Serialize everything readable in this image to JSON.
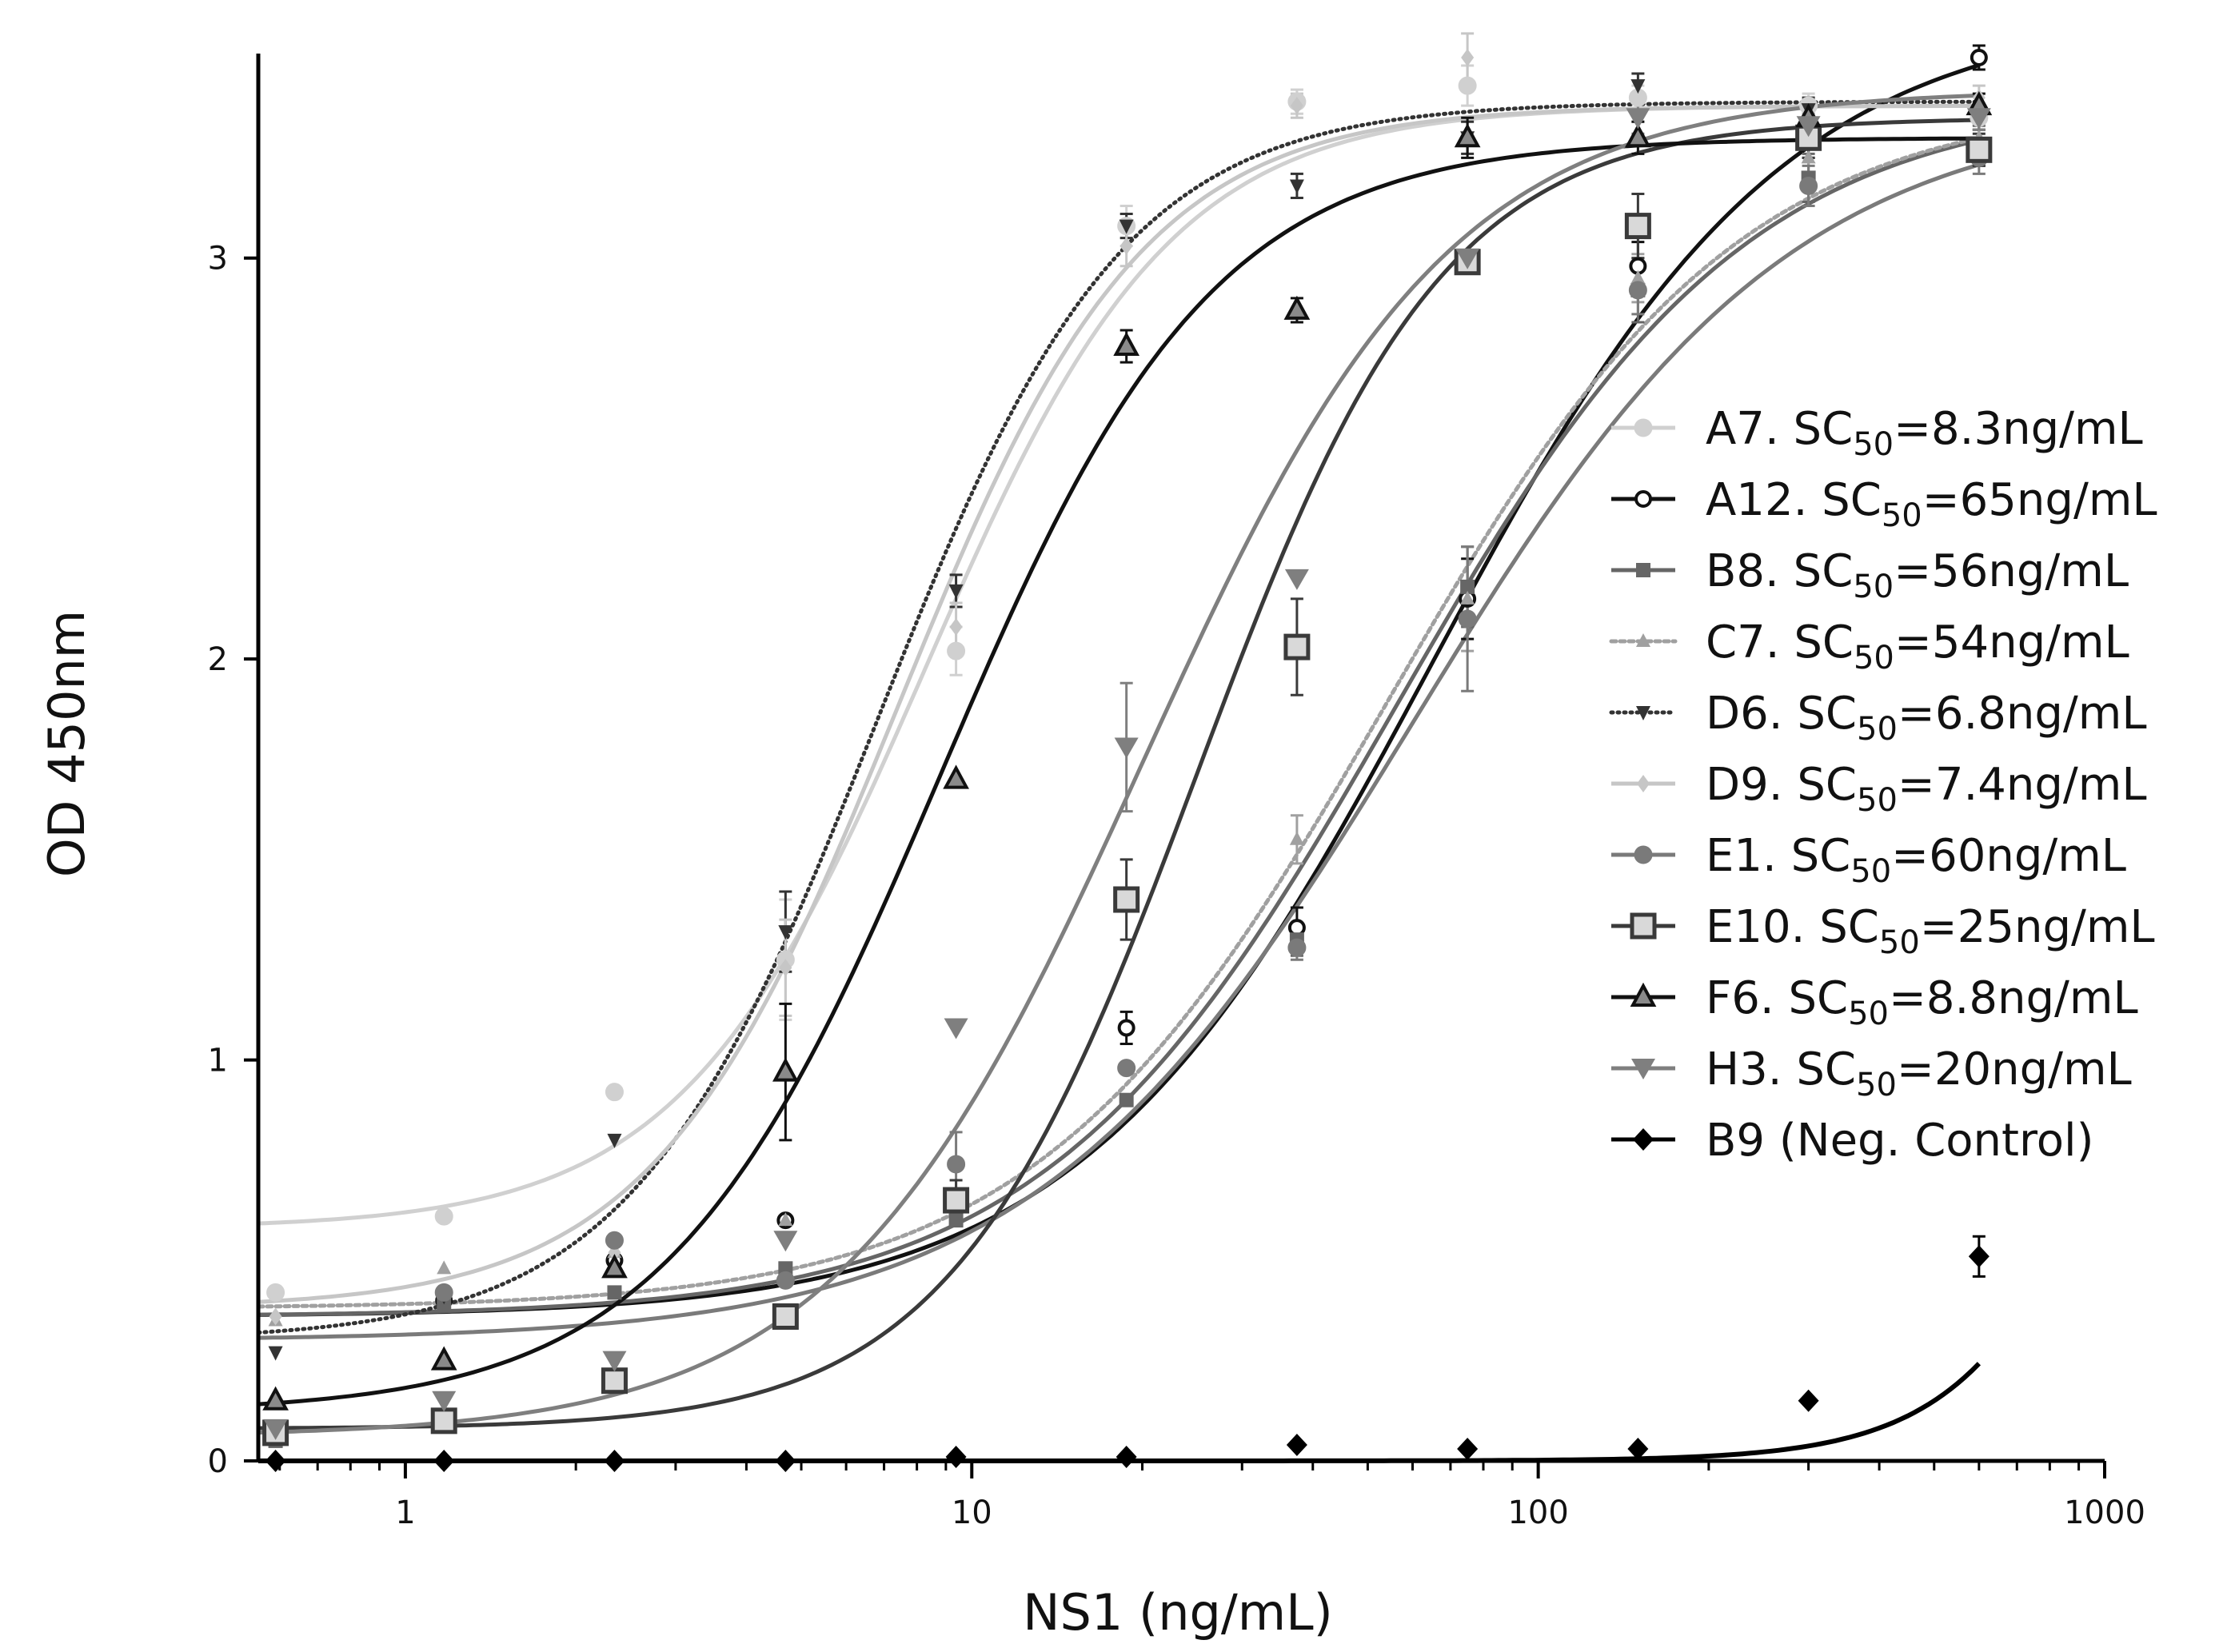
{
  "chart_data": {
    "type": "scatter",
    "title": "",
    "xlabel": "NS1 (ng/mL)",
    "ylabel": "OD 450nm",
    "xscale": "log",
    "xlim": [
      0.55,
      1000
    ],
    "ylim": [
      0,
      3.5
    ],
    "x_ticks": [
      1,
      10,
      100,
      1000
    ],
    "x_tick_labels": [
      "1",
      "10",
      "100",
      "1000"
    ],
    "y_ticks": [
      0,
      1,
      2,
      3
    ],
    "y_tick_labels": [
      "0",
      "1",
      "2",
      "3"
    ],
    "legend_position": "right",
    "x": [
      0.59,
      1.17,
      2.34,
      4.69,
      9.38,
      18.75,
      37.5,
      75,
      150,
      300,
      600
    ],
    "series": [
      {
        "id": "A7",
        "label_prefix": "A7. SC",
        "label_sub": "50",
        "label_suffix": "=8.3ng/mL",
        "marker": "circle",
        "dash": "solid",
        "color": "#d0d0d0",
        "values": [
          0.42,
          0.61,
          0.92,
          1.25,
          2.02,
          3.08,
          3.39,
          3.43,
          3.4,
          3.38,
          3.35
        ],
        "errors": [
          0,
          0,
          0,
          0.15,
          0.06,
          0.05,
          0.03,
          0.05,
          0.03,
          0.03,
          0.03
        ],
        "fit": {
          "bottom": 0.58,
          "top": 3.38,
          "ec50": 8.3,
          "hill": 2.0
        }
      },
      {
        "id": "A12",
        "label_prefix": "A12. SC",
        "label_sub": "50",
        "label_suffix": "=65ng/mL",
        "marker": "circle-open",
        "dash": "solid",
        "color": "#111111",
        "values": [
          0.08,
          0.4,
          0.5,
          0.6,
          0.66,
          1.08,
          1.33,
          2.15,
          2.98,
          3.3,
          3.5
        ],
        "errors": [
          0,
          0,
          0,
          0,
          0,
          0.04,
          0.05,
          0.1,
          0.06,
          0.05,
          0.03
        ],
        "fit": {
          "bottom": 0.36,
          "top": 3.62,
          "ec50": 65,
          "hill": 1.4
        }
      },
      {
        "id": "B8",
        "label_prefix": "B8. SC",
        "label_sub": "50",
        "label_suffix": "=56ng/mL",
        "marker": "square-small",
        "dash": "solid",
        "color": "#666666",
        "values": [
          0.05,
          0.39,
          0.42,
          0.48,
          0.6,
          0.9,
          1.3,
          2.18,
          2.92,
          3.2,
          3.28
        ],
        "errors": [
          0,
          0,
          0,
          0,
          0,
          0,
          0.04,
          0.1,
          0.08,
          0.06,
          0.05
        ],
        "fit": {
          "bottom": 0.36,
          "top": 3.4,
          "ec50": 56,
          "hill": 1.4
        }
      },
      {
        "id": "C7",
        "label_prefix": "C7. SC",
        "label_sub": "50",
        "label_suffix": "=54ng/mL",
        "marker": "triangle-small",
        "dash": "6,5",
        "color": "#a0a0a0",
        "values": [
          0.35,
          0.48,
          0.52,
          0.6,
          0.65,
          0.98,
          1.55,
          2.15,
          2.95,
          3.25,
          3.3
        ],
        "errors": [
          0,
          0,
          0,
          0,
          0,
          0,
          0.06,
          0.13,
          0.06,
          0.05,
          0.04
        ],
        "fit": {
          "bottom": 0.38,
          "top": 3.4,
          "ec50": 54,
          "hill": 1.4
        }
      },
      {
        "id": "D6",
        "label_prefix": "D6. SC",
        "label_sub": "50",
        "label_suffix": "=6.8ng/mL",
        "marker": "triangle-down-small",
        "dash": "2,6",
        "color": "#333333",
        "values": [
          0.27,
          0.41,
          0.8,
          1.32,
          2.17,
          3.08,
          3.18,
          3.3,
          3.43,
          3.37,
          3.35
        ],
        "errors": [
          0,
          0,
          0,
          0.1,
          0.04,
          0.03,
          0.03,
          0.04,
          0.03,
          0.03,
          0.03
        ],
        "fit": {
          "bottom": 0.3,
          "top": 3.39,
          "ec50": 6.8,
          "hill": 2.0
        }
      },
      {
        "id": "D9",
        "label_prefix": "D9. SC",
        "label_sub": "50",
        "label_suffix": "=7.4ng/mL",
        "marker": "diamond-small",
        "dash": "solid",
        "color": "#c6c6c6",
        "values": [
          0.36,
          0.42,
          0.52,
          1.23,
          2.08,
          3.03,
          3.38,
          3.5,
          3.3,
          3.36,
          3.4
        ],
        "errors": [
          0,
          0,
          0,
          0.12,
          0.06,
          0.05,
          0.03,
          0.06,
          0.04,
          0.03,
          0.03
        ],
        "fit": {
          "bottom": 0.38,
          "top": 3.38,
          "ec50": 7.4,
          "hill": 2.0
        }
      },
      {
        "id": "E1",
        "label_prefix": "E1. SC",
        "label_sub": "50",
        "label_suffix": "=60ng/mL",
        "marker": "circle",
        "dash": "solid",
        "color": "#7a7a7a",
        "values": [
          0.06,
          0.42,
          0.55,
          0.45,
          0.74,
          0.98,
          1.28,
          2.1,
          2.92,
          3.18,
          3.25
        ],
        "errors": [
          0,
          0,
          0,
          0,
          0.08,
          0,
          0.03,
          0.18,
          0.06,
          0.05,
          0.04
        ],
        "fit": {
          "bottom": 0.3,
          "top": 3.38,
          "ec50": 60,
          "hill": 1.3
        }
      },
      {
        "id": "E10",
        "label_prefix": "E10. SC",
        "label_sub": "50",
        "label_suffix": "=25ng/mL",
        "marker": "square-open",
        "dash": "solid",
        "color": "#3a3a3a",
        "values": [
          0.07,
          0.1,
          0.2,
          0.36,
          0.65,
          1.4,
          2.03,
          2.99,
          3.08,
          3.3,
          3.27
        ],
        "errors": [
          0,
          0,
          0,
          0,
          0.05,
          0.1,
          0.12,
          0,
          0.08,
          0.05,
          0.04
        ],
        "fit": {
          "bottom": 0.08,
          "top": 3.35,
          "ec50": 25,
          "hill": 2.0
        }
      },
      {
        "id": "F6",
        "label_prefix": "F6. SC",
        "label_sub": "50",
        "label_suffix": "=8.8ng/mL",
        "marker": "triangle-open",
        "dash": "solid",
        "color": "#111111",
        "values": [
          0.15,
          0.25,
          0.48,
          0.97,
          1.7,
          2.78,
          2.87,
          3.3,
          3.3,
          3.35,
          3.38
        ],
        "errors": [
          0,
          0,
          0,
          0.17,
          0,
          0.04,
          0.03,
          0.05,
          0.04,
          0.03,
          0.03
        ],
        "fit": {
          "bottom": 0.12,
          "top": 3.3,
          "ec50": 8.8,
          "hill": 1.8
        }
      },
      {
        "id": "H3",
        "label_prefix": "H3. SC",
        "label_sub": "50",
        "label_suffix": "=20ng/mL",
        "marker": "triangle-down",
        "dash": "solid",
        "color": "#7f7f7f",
        "values": [
          0.08,
          0.15,
          0.25,
          0.55,
          1.08,
          1.78,
          2.2,
          3.0,
          3.35,
          3.33,
          3.35
        ],
        "errors": [
          0,
          0,
          0,
          0,
          0,
          0.16,
          0,
          0,
          0.04,
          0.03,
          0.03
        ],
        "fit": {
          "bottom": 0.06,
          "top": 3.42,
          "ec50": 20,
          "hill": 1.6
        }
      },
      {
        "id": "B9",
        "label_prefix": "B9 (Neg. Control)",
        "label_sub": "",
        "label_suffix": "",
        "marker": "diamond",
        "dash": "solid",
        "color": "#000000",
        "values": [
          0.0,
          0.0,
          0.0,
          0.0,
          0.01,
          0.01,
          0.04,
          0.03,
          0.03,
          0.15,
          0.51
        ],
        "errors": [
          0,
          0,
          0,
          0,
          0,
          0,
          0,
          0,
          0,
          0,
          0.05
        ],
        "fit": {
          "bottom": 0.0,
          "top": 3.4,
          "ec50": 1500,
          "hill": 2.8
        }
      }
    ]
  }
}
